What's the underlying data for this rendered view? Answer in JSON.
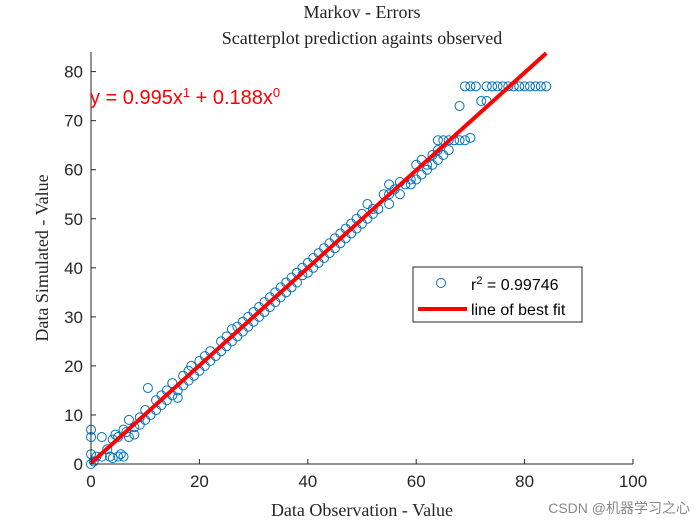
{
  "chart_data": {
    "type": "scatter",
    "title": "Markov - Errors",
    "subtitle": "Scatterplot prediction againts observed",
    "xlabel": "Data Observation - Value",
    "ylabel": "Data Simulated - Value",
    "xlim": [
      0,
      100
    ],
    "ylim": [
      0,
      84
    ],
    "xticks": [
      0,
      20,
      40,
      60,
      80,
      100
    ],
    "yticks": [
      0,
      10,
      20,
      30,
      40,
      50,
      60,
      70,
      80
    ],
    "grid": false,
    "legend_position": "right-center",
    "colors": {
      "points": "#0072BD",
      "fit_line": "#FF0000",
      "equation": "#FF0000"
    },
    "equation": {
      "prefix": "y = 0.995x",
      "exp1": "1",
      "middle": " + 0.188x",
      "exp2": "0"
    },
    "series": [
      {
        "name": "r² = 0.99746",
        "label_base": "r",
        "label_sup": "2",
        "label_rest": " = 0.99746",
        "marker": "open-circle",
        "points": [
          [
            0,
            0
          ],
          [
            0,
            2
          ],
          [
            0,
            5.5
          ],
          [
            0,
            7
          ],
          [
            0.5,
            0.5
          ],
          [
            1,
            1.5
          ],
          [
            2,
            1.5
          ],
          [
            2,
            5.5
          ],
          [
            3,
            3
          ],
          [
            3.5,
            1.5
          ],
          [
            4,
            1.2
          ],
          [
            4,
            5
          ],
          [
            4.5,
            6
          ],
          [
            5,
            1.5
          ],
          [
            5.5,
            2
          ],
          [
            6,
            1.5
          ],
          [
            5,
            5.5
          ],
          [
            6,
            7
          ],
          [
            6.5,
            6.5
          ],
          [
            7,
            5.5
          ],
          [
            7,
            9
          ],
          [
            8,
            6
          ],
          [
            8,
            7.5
          ],
          [
            9,
            8
          ],
          [
            9,
            9.5
          ],
          [
            10,
            9
          ],
          [
            10,
            11
          ],
          [
            10.5,
            15.5
          ],
          [
            11,
            10
          ],
          [
            12,
            11
          ],
          [
            12,
            13
          ],
          [
            13,
            12
          ],
          [
            13,
            14
          ],
          [
            14,
            13
          ],
          [
            14,
            15
          ],
          [
            15,
            14
          ],
          [
            15,
            16.5
          ],
          [
            16,
            15
          ],
          [
            16,
            13.5
          ],
          [
            17,
            16
          ],
          [
            17,
            18
          ],
          [
            18,
            17
          ],
          [
            18,
            19
          ],
          [
            18.5,
            20
          ],
          [
            19,
            18
          ],
          [
            20,
            19
          ],
          [
            20,
            21
          ],
          [
            21,
            20
          ],
          [
            21,
            22
          ],
          [
            22,
            21
          ],
          [
            22,
            23
          ],
          [
            23,
            22
          ],
          [
            24,
            23
          ],
          [
            24,
            25
          ],
          [
            25,
            24
          ],
          [
            25,
            26
          ],
          [
            26,
            25
          ],
          [
            26,
            27.5
          ],
          [
            27,
            26
          ],
          [
            27,
            28
          ],
          [
            28,
            27
          ],
          [
            28,
            29
          ],
          [
            29,
            28
          ],
          [
            29,
            30
          ],
          [
            30,
            29
          ],
          [
            30,
            31
          ],
          [
            31,
            30
          ],
          [
            31,
            32
          ],
          [
            32,
            31
          ],
          [
            32,
            33
          ],
          [
            33,
            32
          ],
          [
            33,
            34
          ],
          [
            34,
            33
          ],
          [
            34,
            35
          ],
          [
            35,
            34
          ],
          [
            35,
            36
          ],
          [
            36,
            35
          ],
          [
            36,
            37
          ],
          [
            37,
            36
          ],
          [
            37,
            38
          ],
          [
            38,
            37
          ],
          [
            38,
            39
          ],
          [
            39,
            38.5
          ],
          [
            39,
            40
          ],
          [
            40,
            39
          ],
          [
            40,
            41
          ],
          [
            41,
            40
          ],
          [
            41,
            42
          ],
          [
            42,
            41
          ],
          [
            42,
            43
          ],
          [
            43,
            42
          ],
          [
            43,
            44
          ],
          [
            44,
            43
          ],
          [
            44,
            45
          ],
          [
            45,
            44
          ],
          [
            45,
            46
          ],
          [
            46,
            45
          ],
          [
            46,
            47
          ],
          [
            47,
            46
          ],
          [
            47,
            48
          ],
          [
            48,
            47
          ],
          [
            48,
            49
          ],
          [
            49,
            48
          ],
          [
            49,
            50
          ],
          [
            50,
            49
          ],
          [
            50,
            51
          ],
          [
            51,
            50
          ],
          [
            51,
            53
          ],
          [
            52,
            51
          ],
          [
            52,
            52
          ],
          [
            53,
            52
          ],
          [
            54,
            55
          ],
          [
            55,
            53
          ],
          [
            55,
            55
          ],
          [
            55,
            57
          ],
          [
            56,
            56
          ],
          [
            57,
            55
          ],
          [
            57,
            57.5
          ],
          [
            58,
            57
          ],
          [
            59,
            57
          ],
          [
            59,
            58
          ],
          [
            60,
            58
          ],
          [
            60,
            61
          ],
          [
            61,
            59
          ],
          [
            61,
            62
          ],
          [
            62,
            60
          ],
          [
            62,
            61
          ],
          [
            63,
            61
          ],
          [
            63,
            63
          ],
          [
            64,
            62
          ],
          [
            64,
            64
          ],
          [
            64,
            66
          ],
          [
            65,
            63
          ],
          [
            65,
            66
          ],
          [
            66,
            64
          ],
          [
            66,
            66
          ],
          [
            67,
            66
          ],
          [
            68,
            66
          ],
          [
            69,
            66
          ],
          [
            70,
            66.5
          ],
          [
            68,
            73
          ],
          [
            69,
            77
          ],
          [
            70,
            77
          ],
          [
            71,
            77
          ],
          [
            72,
            74
          ],
          [
            73,
            74
          ],
          [
            73,
            77
          ],
          [
            74,
            77
          ],
          [
            75,
            77
          ],
          [
            76,
            77
          ],
          [
            77,
            77
          ],
          [
            78,
            77
          ],
          [
            79,
            77
          ],
          [
            80,
            77
          ],
          [
            81,
            77
          ],
          [
            82,
            77
          ],
          [
            83,
            77
          ],
          [
            84,
            77
          ]
        ]
      },
      {
        "name": "line of best fit",
        "type": "line",
        "slope": 0.995,
        "intercept": 0.188,
        "x": [
          0,
          84
        ]
      }
    ]
  },
  "watermark": "CSDN @机器学习之心"
}
